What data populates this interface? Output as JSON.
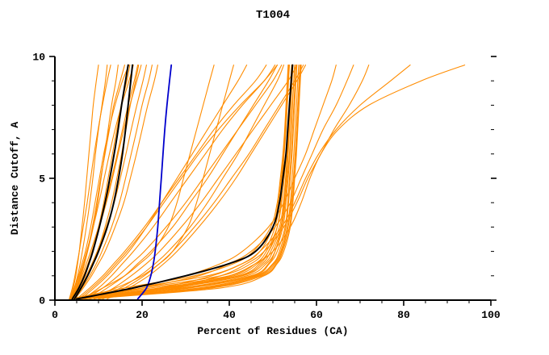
{
  "chart_data": {
    "type": "line",
    "title": "T1004",
    "xlabel": "Percent of Residues (CA)",
    "ylabel": "Distance Cutoff, A",
    "xlim": [
      0,
      100
    ],
    "ylim": [
      0,
      10
    ],
    "x_major_ticks": [
      0,
      20,
      40,
      60,
      80,
      100
    ],
    "x_minor_step": 5,
    "y_major_ticks": [
      0,
      5,
      10
    ],
    "y_minor_step": 1,
    "grid": false,
    "legend": "none",
    "colors": {
      "models": "#ff8c00",
      "highlight": "#000000",
      "reference": "#0000cd",
      "axis": "#000000",
      "background": "#ffffff"
    },
    "y_levels": [
      0.05,
      0.5,
      1,
      1.5,
      2,
      3,
      4,
      5,
      6,
      7,
      8,
      9,
      9.65
    ],
    "series_groups": [
      {
        "name": "model-curve",
        "color_key": "models",
        "width": 1.1,
        "curves": [
          [
            3.5,
            4.2,
            4.8,
            5.2,
            5.6,
            6.2,
            6.8,
            7.3,
            7.8,
            8.3,
            8.8,
            9.5,
            10
          ],
          [
            3.8,
            4.5,
            5.2,
            5.8,
            6.3,
            7.2,
            8.0,
            8.7,
            9.3,
            10.0,
            10.8,
            11.6,
            12
          ],
          [
            4.0,
            5.0,
            6.0,
            6.8,
            7.5,
            8.8,
            9.8,
            10.6,
            11.4,
            12.2,
            13.0,
            14.0,
            14.5
          ],
          [
            3.6,
            4.8,
            5.8,
            6.6,
            7.4,
            8.6,
            9.6,
            10.5,
            11.5,
            12.5,
            13.5,
            15.0,
            16
          ],
          [
            4.2,
            5.5,
            6.8,
            7.8,
            8.6,
            10.0,
            11.2,
            12.2,
            13.2,
            14.2,
            15.2,
            16.5,
            17.2
          ],
          [
            3.4,
            4.4,
            5.4,
            6.2,
            7.0,
            8.2,
            9.2,
            10.2,
            11.2,
            12.4,
            13.8,
            15.5,
            17
          ],
          [
            4.5,
            6.0,
            7.5,
            8.8,
            9.8,
            11.5,
            13.0,
            14.2,
            15.3,
            16.3,
            17.3,
            18.5,
            19.2
          ],
          [
            3.9,
            5.2,
            6.5,
            7.6,
            8.5,
            10.2,
            11.8,
            13.2,
            14.5,
            15.8,
            17.2,
            18.8,
            19.8
          ],
          [
            4.1,
            5.8,
            7.2,
            8.5,
            9.7,
            11.8,
            13.6,
            15.0,
            16.3,
            17.5,
            18.8,
            20.2,
            21
          ],
          [
            3.7,
            5.0,
            6.2,
            7.2,
            8.2,
            10.0,
            11.6,
            13.0,
            14.3,
            15.5,
            16.8,
            18.2,
            19
          ],
          [
            4.4,
            6.2,
            8.0,
            9.5,
            10.8,
            13.0,
            14.8,
            16.2,
            17.5,
            18.8,
            20.0,
            21.5,
            22.3
          ],
          [
            3.3,
            4.0,
            4.6,
            5.1,
            5.6,
            6.5,
            7.4,
            8.2,
            9.0,
            9.9,
            10.9,
            12.0,
            12.8
          ],
          [
            4.6,
            6.5,
            8.4,
            10.0,
            11.5,
            13.8,
            15.8,
            17.3,
            18.7,
            20.0,
            21.3,
            22.8,
            23.6
          ],
          [
            3.5,
            4.6,
            5.6,
            6.5,
            7.3,
            8.8,
            10.1,
            11.3,
            12.5,
            13.8,
            15.3,
            17.0,
            18
          ],
          [
            4,
            25,
            42,
            47,
            49,
            51,
            51.8,
            52.2,
            52.6,
            53,
            53.3,
            53.6,
            53.8
          ],
          [
            5,
            30,
            45,
            49,
            50.5,
            52,
            52.6,
            53,
            53.4,
            53.7,
            54,
            54.3,
            54.5
          ],
          [
            3.5,
            20,
            38,
            45,
            48,
            50.5,
            51.5,
            52,
            52.5,
            52.9,
            53.2,
            53.5,
            53.7
          ],
          [
            6,
            33,
            46,
            50,
            51.5,
            53,
            53.6,
            54,
            54.4,
            54.7,
            55,
            55.3,
            55.5
          ],
          [
            4.5,
            27,
            43,
            48,
            50,
            52,
            52.8,
            53.3,
            53.8,
            54.1,
            54.4,
            54.8,
            55
          ],
          [
            5.5,
            35,
            47,
            50.5,
            52,
            53.5,
            54.2,
            54.7,
            55.1,
            55.4,
            55.7,
            56,
            56.2
          ],
          [
            4,
            22,
            40,
            46,
            48.5,
            51,
            52,
            52.6,
            53.1,
            53.5,
            53.8,
            54.1,
            54.3
          ],
          [
            7,
            38,
            48,
            51,
            52.5,
            54,
            54.6,
            55,
            55.4,
            55.7,
            56,
            56.3,
            56.5
          ],
          [
            3.8,
            18,
            35,
            43,
            47,
            50,
            51.2,
            51.9,
            52.4,
            52.8,
            53.1,
            53.4,
            53.6
          ],
          [
            5,
            29,
            44,
            48.5,
            50.5,
            52.3,
            53,
            53.5,
            53.9,
            54.2,
            54.5,
            54.8,
            55
          ],
          [
            4.2,
            24,
            41,
            46.5,
            49,
            51.5,
            52.4,
            52.9,
            53.3,
            53.6,
            53.9,
            54.2,
            54.4
          ],
          [
            6.5,
            36,
            47.5,
            50.8,
            52.2,
            53.8,
            54.4,
            54.9,
            55.3,
            55.6,
            55.9,
            56.2,
            56.4
          ],
          [
            4.8,
            26,
            42.5,
            47.5,
            49.5,
            51.8,
            52.6,
            53.1,
            53.5,
            53.8,
            54.1,
            54.4,
            54.6
          ],
          [
            5.2,
            31,
            45.5,
            49.2,
            51,
            52.8,
            53.4,
            53.8,
            54.2,
            54.5,
            54.8,
            55.1,
            55.3
          ],
          [
            3.6,
            16,
            32,
            41,
            45.5,
            49.5,
            51,
            51.7,
            52.3,
            52.7,
            53,
            53.3,
            53.5
          ],
          [
            5.8,
            34,
            46.5,
            50.2,
            51.8,
            53.3,
            54,
            54.4,
            54.8,
            55.1,
            55.4,
            55.7,
            55.9
          ],
          [
            6,
            9,
            12,
            14.5,
            17,
            21,
            24.5,
            28,
            31.5,
            35,
            38.5,
            42,
            44
          ],
          [
            8,
            12,
            16,
            19,
            22,
            27,
            31,
            35,
            38.5,
            42,
            45.5,
            49,
            51
          ],
          [
            5,
            8,
            11,
            13.5,
            16,
            20.5,
            24.5,
            28.5,
            32.5,
            36.5,
            41,
            46,
            48.5
          ],
          [
            10,
            15,
            19.5,
            23,
            26,
            31,
            35,
            38.5,
            42,
            45,
            48,
            51,
            52.5
          ],
          [
            7,
            11,
            14.5,
            17.5,
            20.5,
            25.5,
            30,
            34,
            38,
            42,
            46,
            50,
            52
          ],
          [
            12,
            17,
            21.5,
            25,
            28,
            33,
            37.5,
            41.5,
            45,
            48.5,
            52,
            55.5,
            57.5
          ],
          [
            6.5,
            10,
            13,
            15.5,
            18,
            22.5,
            26.5,
            30.5,
            34.5,
            38.5,
            43,
            48,
            50.5
          ],
          [
            9,
            13.5,
            17.5,
            21,
            24,
            29,
            33.5,
            37.5,
            41.5,
            45.5,
            49.5,
            53.5,
            55.5
          ],
          [
            5.5,
            8.5,
            11.5,
            14,
            16.5,
            21,
            25,
            29,
            33,
            37.5,
            42.5,
            48,
            51
          ],
          [
            11,
            16,
            20.5,
            24,
            27,
            32,
            36.5,
            40.5,
            44.5,
            48,
            51.5,
            55,
            57
          ],
          [
            7,
            14,
            20,
            24,
            27,
            30.5,
            32.5,
            34,
            35.5,
            37,
            38.5,
            40,
            41
          ],
          [
            6,
            11,
            16,
            19.5,
            22.5,
            26,
            28,
            29.5,
            31,
            32.5,
            34,
            35.5,
            36.5
          ],
          [
            10,
            28,
            40,
            46,
            50,
            54,
            56.5,
            58.5,
            61,
            65,
            72,
            84,
            94
          ],
          [
            8,
            24,
            36,
            43,
            47,
            52,
            55,
            57.5,
            60.5,
            64.5,
            70,
            77,
            81.5
          ],
          [
            9,
            26,
            38,
            44,
            48,
            52.5,
            55.5,
            58,
            61,
            64,
            67.5,
            70.5,
            72
          ],
          [
            7,
            20,
            33,
            40,
            45,
            50.5,
            54,
            56.5,
            59,
            61.5,
            64.5,
            67,
            68.5
          ],
          [
            6,
            18,
            30,
            38,
            43,
            49,
            52.5,
            55,
            57.5,
            59.5,
            61.5,
            63.5,
            64.5
          ]
        ]
      },
      {
        "name": "reference-curve",
        "color_key": "reference",
        "width": 1.8,
        "curves": [
          [
            19,
            21,
            22,
            22.6,
            23,
            23.6,
            24,
            24.4,
            24.8,
            25.2,
            25.7,
            26.3,
            26.7
          ]
        ]
      },
      {
        "name": "highlight-curve",
        "color_key": "highlight",
        "width": 2,
        "curves": [
          [
            4,
            5.5,
            6.8,
            7.8,
            8.7,
            10.2,
            11.5,
            12.6,
            13.6,
            14.5,
            15.3,
            16.2,
            16.8
          ],
          [
            4.5,
            6,
            7.5,
            8.8,
            10,
            12,
            13.5,
            14.6,
            15.5,
            16.2,
            16.8,
            17.4,
            17.8
          ],
          [
            5,
            18,
            30,
            40,
            46,
            50,
            51.5,
            52.3,
            53,
            53.4,
            53.8,
            54.2,
            54.5
          ]
        ]
      }
    ]
  }
}
